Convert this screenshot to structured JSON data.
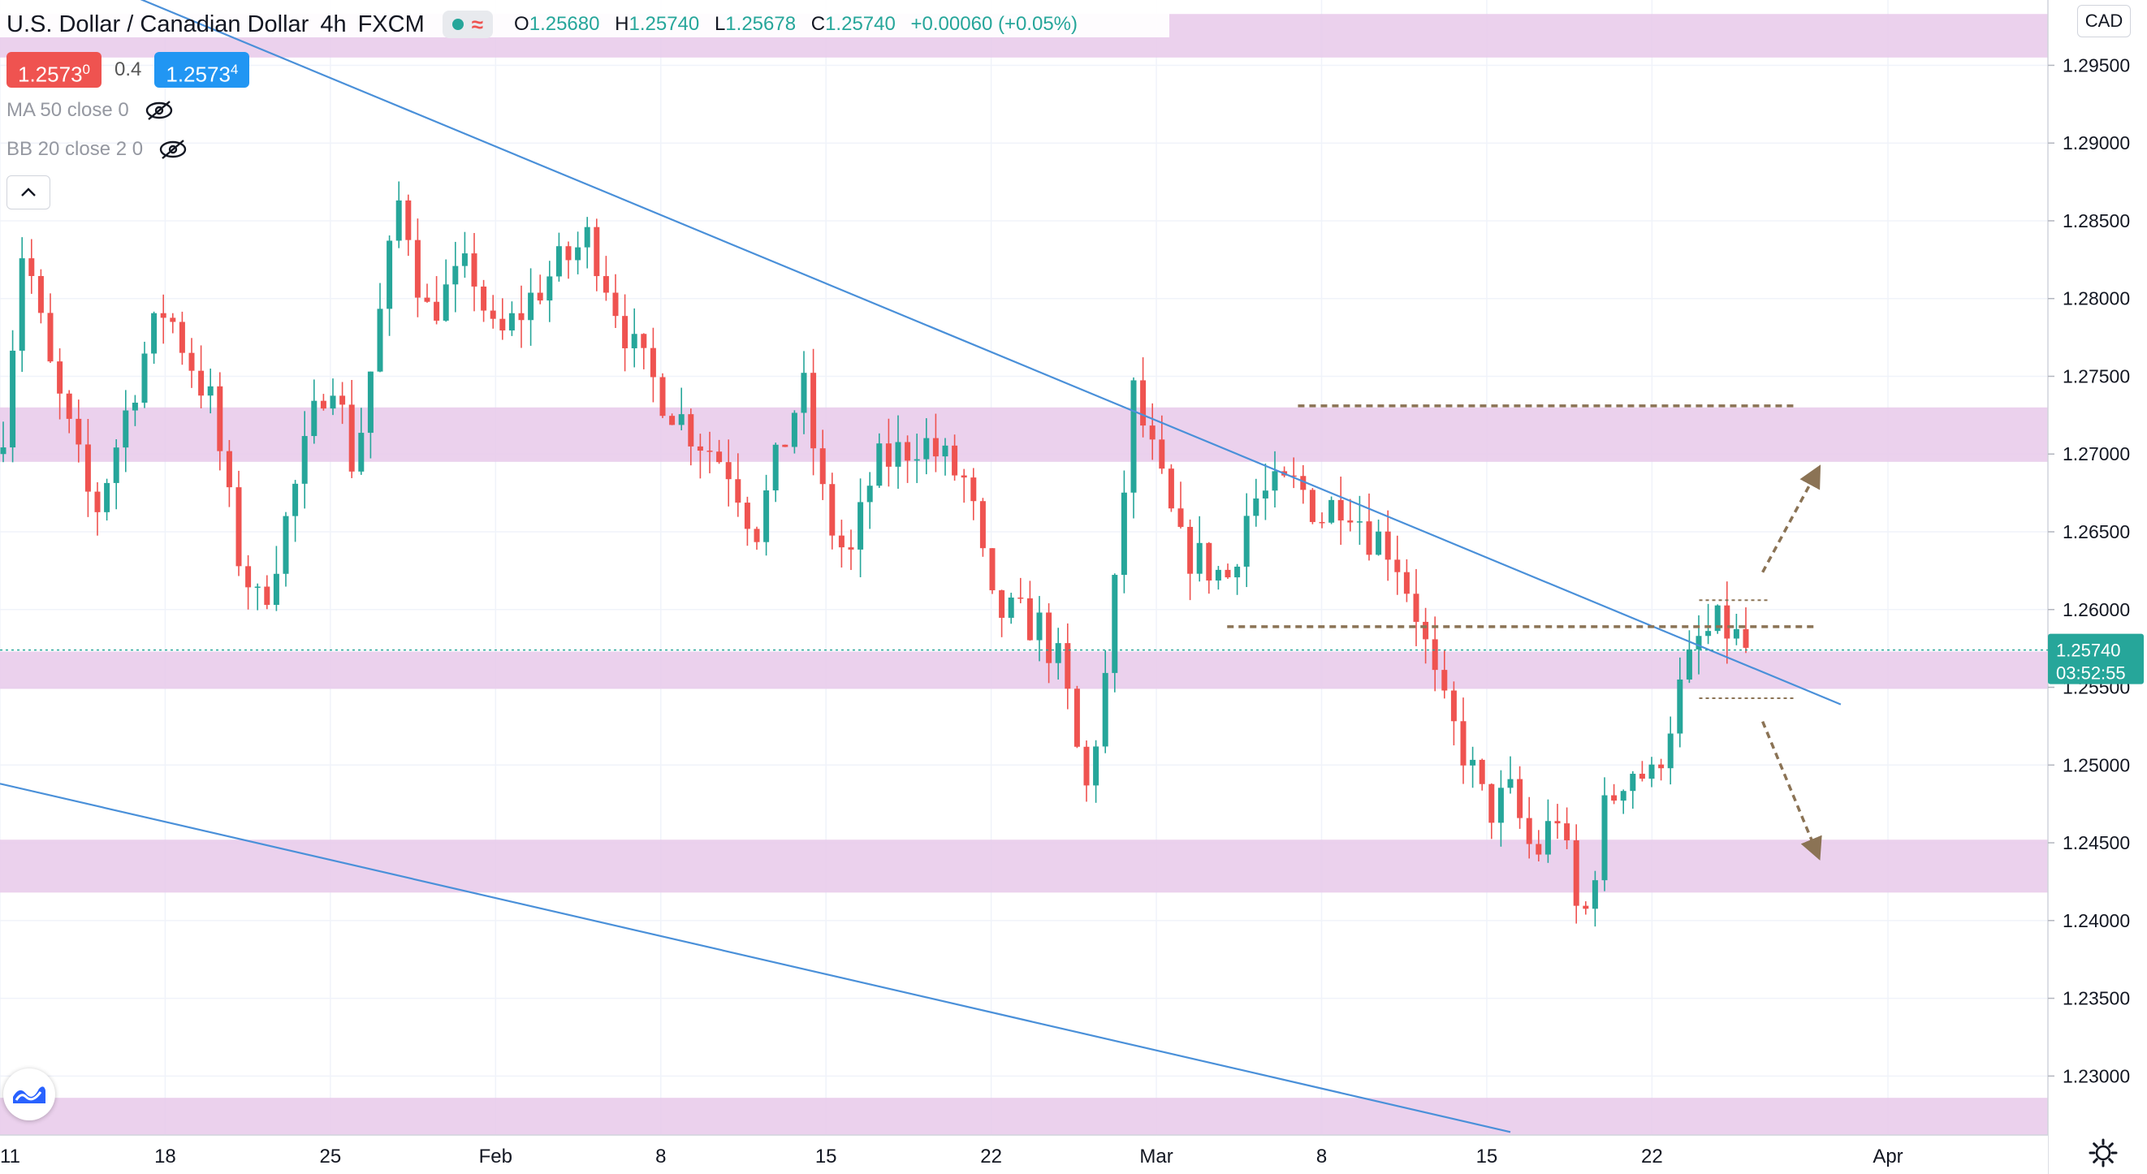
{
  "header": {
    "symbol": "U.S. Dollar / Canadian Dollar",
    "interval": "4h",
    "exchange": "FXCM",
    "open_label": "O",
    "open": "1.25680",
    "high_label": "H",
    "high": "1.25740",
    "low_label": "L",
    "low": "1.25678",
    "close_label": "C",
    "close": "1.25740",
    "change": "+0.00060 (+0.05%)"
  },
  "quote": {
    "bid_main": "1.2573",
    "bid_sup": "0",
    "spread": "0.4",
    "ask_main": "1.2573",
    "ask_sup": "4"
  },
  "indicators": [
    {
      "label": "MA 50 close 0"
    },
    {
      "label": "BB 20 close 2 0"
    }
  ],
  "currency_badge": "CAD",
  "icons": {
    "collapse": "chevron-up-icon",
    "eye": "eye-off-icon",
    "logo": "tradingview-logo-icon",
    "settings": "gear-icon"
  },
  "colors": {
    "bull": "#26a69a",
    "bear": "#ef5350",
    "zone": "#e7c9ea",
    "trendline": "#4a90d9",
    "dashed": "#8b7355",
    "last_price": "#26a69a"
  },
  "last_price_tag": {
    "price": "1.25740",
    "countdown": "03:52:55"
  },
  "chart_data": {
    "type": "candlestick",
    "title": "U.S. Dollar / Canadian Dollar, 4h, FXCM",
    "x_axis_labels": [
      "11",
      "18",
      "25",
      "Feb",
      "8",
      "15",
      "22",
      "Mar",
      "8",
      "15",
      "22",
      "Apr"
    ],
    "y_axis_labels": [
      "1.29500",
      "1.29000",
      "1.28500",
      "1.28000",
      "1.27500",
      "1.27000",
      "1.26500",
      "1.26000",
      "1.25500",
      "1.25000",
      "1.24500",
      "1.24000",
      "1.23500",
      "1.23000"
    ],
    "ylim": [
      1.2237,
      1.2992
    ],
    "ohlc_path": [
      [
        "Jan 11",
        1.27
      ],
      [
        "Jan 12",
        1.284
      ],
      [
        "Jan 13",
        1.276
      ],
      [
        "Jan 14",
        1.271
      ],
      [
        "Jan 15",
        1.266
      ],
      [
        "Jan 17",
        1.276
      ],
      [
        "Jan 18",
        1.2795
      ],
      [
        "Jan 20",
        1.273
      ],
      [
        "Jan 21",
        1.264
      ],
      [
        "Jan 22",
        1.26
      ],
      [
        "Jan 23",
        1.265
      ],
      [
        "Jan 25",
        1.276
      ],
      [
        "Jan 26",
        1.269
      ],
      [
        "Jan 27",
        1.278
      ],
      [
        "Jan 28",
        1.287
      ],
      [
        "Jan 29",
        1.279
      ],
      [
        "Jan 31",
        1.282
      ],
      [
        "Feb 1",
        1.277
      ],
      [
        "Feb 3",
        1.281
      ],
      [
        "Feb 5",
        1.284
      ],
      [
        "Feb 7",
        1.276
      ],
      [
        "Feb 9",
        1.272
      ],
      [
        "Feb 11",
        1.269
      ],
      [
        "Feb 12",
        1.265
      ],
      [
        "Feb 14",
        1.2745
      ],
      [
        "Feb 15",
        1.266
      ],
      [
        "Feb 16",
        1.263
      ],
      [
        "Feb 17",
        1.269
      ],
      [
        "Feb 19",
        1.271
      ],
      [
        "Feb 21",
        1.268
      ],
      [
        "Feb 22",
        1.26
      ],
      [
        "Feb 24",
        1.259
      ],
      [
        "Feb 25",
        1.256
      ],
      [
        "Feb 26",
        1.248
      ],
      [
        "Feb 27",
        1.257
      ],
      [
        "Feb 28",
        1.274
      ],
      [
        "Mar 1",
        1.269
      ],
      [
        "Mar 2",
        1.264
      ],
      [
        "Mar 4",
        1.262
      ],
      [
        "Mar 5",
        1.267
      ],
      [
        "Mar 7",
        1.268
      ],
      [
        "Mar 8",
        1.266
      ],
      [
        "Mar 9",
        1.2675
      ],
      [
        "Mar 10",
        1.265
      ],
      [
        "Mar 11",
        1.264
      ],
      [
        "Mar 12",
        1.26
      ],
      [
        "Mar 13",
        1.254
      ],
      [
        "Mar 14",
        1.251
      ],
      [
        "Mar 15",
        1.247
      ],
      [
        "Mar 16",
        1.248
      ],
      [
        "Mar 17",
        1.244
      ],
      [
        "Mar 18",
        1.247
      ],
      [
        "Mar 19",
        1.239
      ],
      [
        "Mar 20",
        1.247
      ],
      [
        "Mar 21",
        1.25
      ],
      [
        "Mar 22",
        1.249
      ],
      [
        "Mar 23",
        1.254
      ],
      [
        "Mar 24",
        1.258
      ],
      [
        "Mar 25",
        1.259
      ],
      [
        "Mar 26",
        1.2574
      ]
    ],
    "last_price": 1.2574,
    "supply_demand_zones": [
      [
        1.2955,
        1.2983
      ],
      [
        1.2695,
        1.273
      ],
      [
        1.2549,
        1.2573
      ],
      [
        1.2418,
        1.2452
      ],
      [
        1.2262,
        1.2286
      ]
    ],
    "trendlines": [
      {
        "from": [
          "Jan 11",
          1.303
        ],
        "to": [
          "Mar 30",
          1.2539
        ]
      },
      {
        "from": [
          "Jan 11",
          1.2488
        ],
        "to": [
          "Mar 16",
          1.2264
        ]
      }
    ],
    "dashed_levels": [
      {
        "price": 1.2731,
        "from": "Mar 7",
        "to": "Mar 28"
      },
      {
        "price": 1.2589,
        "from": "Mar 4",
        "to": "Mar 29"
      },
      {
        "price": 1.2606,
        "from": "Mar 24",
        "to": "Mar 27"
      },
      {
        "price": 1.2543,
        "from": "Mar 24",
        "to": "Mar 28"
      }
    ],
    "scenario_arrows": [
      {
        "direction": "up",
        "from": [
          "Mar 26",
          1.2624
        ],
        "to": [
          "Mar 28",
          1.269
        ]
      },
      {
        "direction": "down",
        "from": [
          "Mar 26",
          1.2528
        ],
        "to": [
          "Mar 28",
          1.2442
        ]
      }
    ],
    "grid": true
  }
}
